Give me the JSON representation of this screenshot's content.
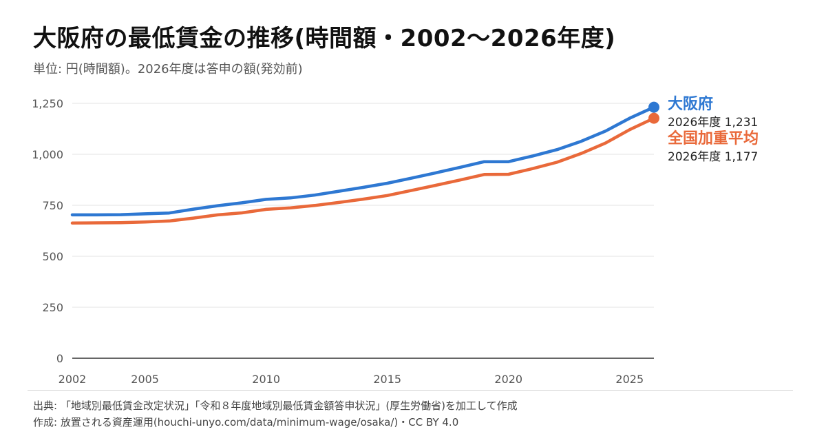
{
  "title": "大阪府の最低賃金の推移(時間額・2002〜2026年度)",
  "subtitle": "単位: 円(時間額)。2026年度は答申の額(発効前)",
  "footer": {
    "source": "出典: 「地域別最低賃金改定状況」「令和８年度地域別最低賃金額答申状況」(厚生労働省)を加工して作成",
    "credit": "作成: 放置される資産運用(houchi-unyo.com/data/minimum-wage/osaka/)・CC BY 4.0"
  },
  "chart_data": {
    "type": "line",
    "x": [
      2002,
      2003,
      2004,
      2005,
      2006,
      2007,
      2008,
      2009,
      2010,
      2011,
      2012,
      2013,
      2014,
      2015,
      2016,
      2017,
      2018,
      2019,
      2020,
      2021,
      2022,
      2023,
      2024,
      2025,
      2026
    ],
    "series": [
      {
        "name": "大阪府",
        "color": "#2e78d2",
        "values": [
          703,
          703,
          704,
          708,
          712,
          731,
          748,
          762,
          779,
          786,
          800,
          819,
          838,
          858,
          883,
          909,
          936,
          964,
          964,
          992,
          1023,
          1064,
          1114,
          1177,
          1231
        ],
        "end_label": "2026年度 1,231"
      },
      {
        "name": "全国加重平均",
        "color": "#e9693a",
        "values": [
          663,
          664,
          665,
          668,
          673,
          687,
          703,
          713,
          730,
          737,
          749,
          764,
          780,
          798,
          823,
          848,
          874,
          901,
          902,
          930,
          961,
          1004,
          1055,
          1121,
          1177
        ],
        "end_label": "2026年度 1,177"
      }
    ],
    "xticks": [
      "2002",
      "2005",
      "2010",
      "2015",
      "2020",
      "2025"
    ],
    "yticks": [
      "0",
      "250",
      "500",
      "750",
      "1,000",
      "1,250"
    ],
    "xlim": [
      2002,
      2026
    ],
    "ylim": [
      0,
      1250
    ],
    "grid": true,
    "legend": "end-labels"
  }
}
